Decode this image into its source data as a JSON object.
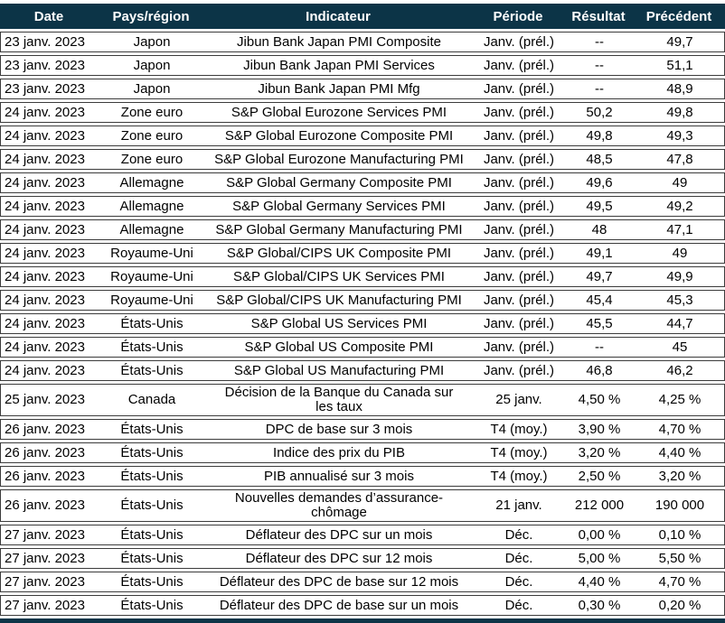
{
  "colors": {
    "header_bg": "#0c3447",
    "header_text": "#ffffff",
    "row_border": "#3c3c3c",
    "body_text": "#000000"
  },
  "table": {
    "headers": [
      "Date",
      "Pays/région",
      "Indicateur",
      "Période",
      "Résultat",
      "Précédent"
    ],
    "rows": [
      {
        "date": "23 janv. 2023",
        "region": "Japon",
        "indicator": "Jibun Bank Japan PMI Composite",
        "period": "Janv. (prél.)",
        "result": "--",
        "previous": "49,7",
        "tall": false
      },
      {
        "date": "23 janv. 2023",
        "region": "Japon",
        "indicator": "Jibun Bank Japan PMI Services",
        "period": "Janv. (prél.)",
        "result": "--",
        "previous": "51,1",
        "tall": false
      },
      {
        "date": "23 janv. 2023",
        "region": "Japon",
        "indicator": "Jibun Bank Japan PMI Mfg",
        "period": "Janv. (prél.)",
        "result": "--",
        "previous": "48,9",
        "tall": false
      },
      {
        "date": "24 janv. 2023",
        "region": "Zone euro",
        "indicator": "S&P Global Eurozone Services PMI",
        "period": "Janv. (prél.)",
        "result": "50,2",
        "previous": "49,8",
        "tall": false
      },
      {
        "date": "24 janv. 2023",
        "region": "Zone euro",
        "indicator": "S&P Global Eurozone Composite PMI",
        "period": "Janv. (prél.)",
        "result": "49,8",
        "previous": "49,3",
        "tall": false
      },
      {
        "date": "24 janv. 2023",
        "region": "Zone euro",
        "indicator": "S&P Global Eurozone Manufacturing PMI",
        "period": "Janv. (prél.)",
        "result": "48,5",
        "previous": "47,8",
        "tall": false
      },
      {
        "date": "24 janv. 2023",
        "region": "Allemagne",
        "indicator": "S&P Global Germany Composite PMI",
        "period": "Janv. (prél.)",
        "result": "49,6",
        "previous": "49",
        "tall": false
      },
      {
        "date": "24 janv. 2023",
        "region": "Allemagne",
        "indicator": "S&P Global Germany Services PMI",
        "period": "Janv. (prél.)",
        "result": "49,5",
        "previous": "49,2",
        "tall": false
      },
      {
        "date": "24 janv. 2023",
        "region": "Allemagne",
        "indicator": "S&P Global Germany Manufacturing PMI",
        "period": "Janv. (prél.)",
        "result": "48",
        "previous": "47,1",
        "tall": false
      },
      {
        "date": "24 janv. 2023",
        "region": "Royaume-Uni",
        "indicator": "S&P Global/CIPS UK Composite PMI",
        "period": "Janv. (prél.)",
        "result": "49,1",
        "previous": "49",
        "tall": false
      },
      {
        "date": "24 janv. 2023",
        "region": "Royaume-Uni",
        "indicator": "S&P Global/CIPS UK Services PMI",
        "period": "Janv. (prél.)",
        "result": "49,7",
        "previous": "49,9",
        "tall": false
      },
      {
        "date": "24 janv. 2023",
        "region": "Royaume-Uni",
        "indicator": "S&P Global/CIPS UK Manufacturing PMI",
        "period": "Janv. (prél.)",
        "result": "45,4",
        "previous": "45,3",
        "tall": false
      },
      {
        "date": "24 janv. 2023",
        "region": "États-Unis",
        "indicator": "S&P Global US Services PMI",
        "period": "Janv. (prél.)",
        "result": "45,5",
        "previous": "44,7",
        "tall": false
      },
      {
        "date": "24 janv. 2023",
        "region": "États-Unis",
        "indicator": "S&P Global US Composite PMI",
        "period": "Janv. (prél.)",
        "result": "--",
        "previous": "45",
        "tall": false
      },
      {
        "date": "24 janv. 2023",
        "region": "États-Unis",
        "indicator": "S&P Global US Manufacturing PMI",
        "period": "Janv. (prél.)",
        "result": "46,8",
        "previous": "46,2",
        "tall": false
      },
      {
        "date": "25 janv. 2023",
        "region": "Canada",
        "indicator": "Décision de la Banque du Canada sur\nles taux",
        "period": "25 janv.",
        "result": "4,50 %",
        "previous": "4,25 %",
        "tall": true
      },
      {
        "date": "26 janv. 2023",
        "region": "États-Unis",
        "indicator": "DPC de base sur 3 mois",
        "period": "T4 (moy.)",
        "result": "3,90 %",
        "previous": "4,70 %",
        "tall": false
      },
      {
        "date": "26 janv. 2023",
        "region": "États-Unis",
        "indicator": "Indice des prix du PIB",
        "period": "T4 (moy.)",
        "result": "3,20 %",
        "previous": "4,40 %",
        "tall": false
      },
      {
        "date": "26 janv. 2023",
        "region": "États-Unis",
        "indicator": "PIB annualisé sur 3 mois",
        "period": "T4 (moy.)",
        "result": "2,50 %",
        "previous": "3,20 %",
        "tall": false
      },
      {
        "date": "26 janv. 2023",
        "region": "États-Unis",
        "indicator": "Nouvelles demandes d’assurance-\nchômage",
        "period": "21 janv.",
        "result": "212 000",
        "previous": "190 000",
        "tall": true
      },
      {
        "date": "27 janv. 2023",
        "region": "États-Unis",
        "indicator": "Déflateur des DPC sur un mois",
        "period": "Déc.",
        "result": "0,00 %",
        "previous": "0,10 %",
        "tall": false
      },
      {
        "date": "27 janv. 2023",
        "region": "États-Unis",
        "indicator": "Déflateur des DPC sur 12 mois",
        "period": "Déc.",
        "result": "5,00 %",
        "previous": "5,50 %",
        "tall": false
      },
      {
        "date": "27 janv. 2023",
        "region": "États-Unis",
        "indicator": "Déflateur des DPC de base sur 12 mois",
        "period": "Déc.",
        "result": "4,40 %",
        "previous": "4,70 %",
        "tall": false
      },
      {
        "date": "27 janv. 2023",
        "region": "États-Unis",
        "indicator": "Déflateur des DPC de base sur un mois",
        "period": "Déc.",
        "result": "0,30 %",
        "previous": "0,20 %",
        "tall": false
      }
    ]
  }
}
